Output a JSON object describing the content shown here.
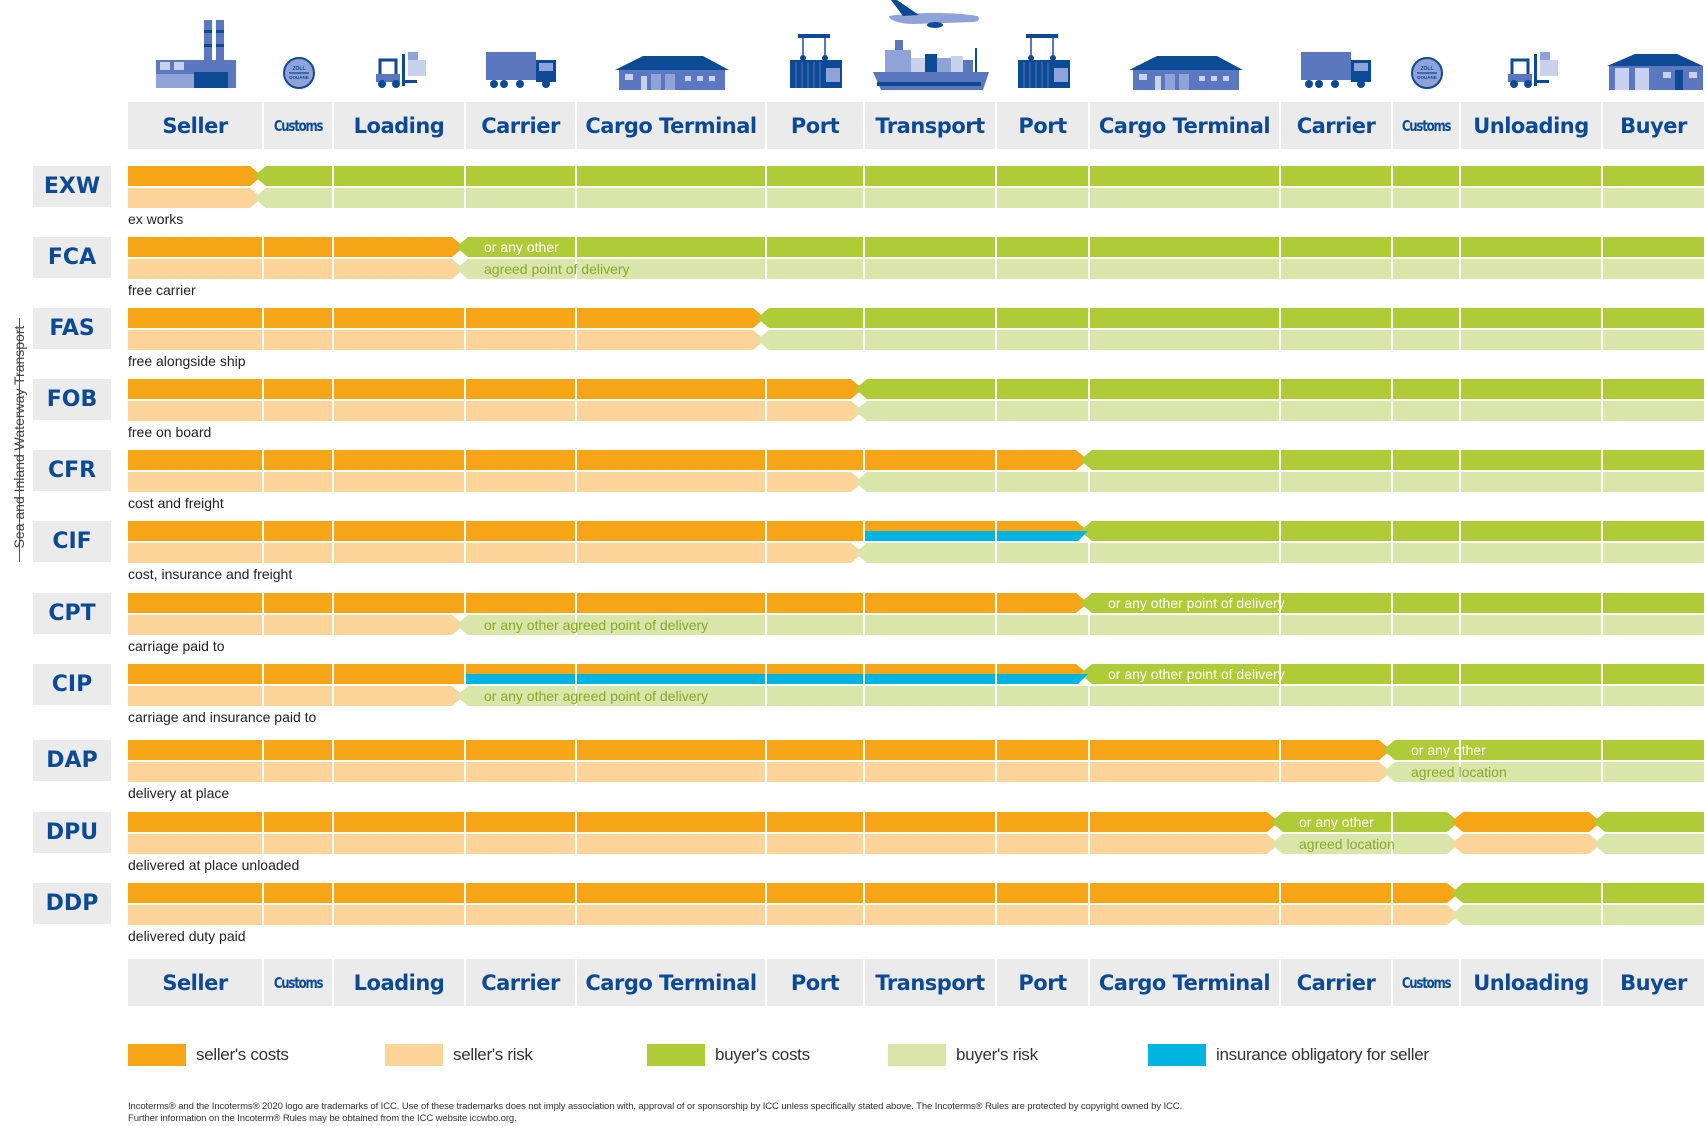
{
  "columns": [
    {
      "label": "Seller",
      "icon": "factory-icon",
      "narrow": false
    },
    {
      "label": "Customs",
      "icon": "customs-stamp-icon",
      "narrow": true
    },
    {
      "label": "Loading",
      "icon": "forklift-icon",
      "narrow": false
    },
    {
      "label": "Carrier",
      "icon": "truck-icon",
      "narrow": false
    },
    {
      "label": "Cargo Terminal",
      "icon": "warehouse-icon",
      "narrow": false
    },
    {
      "label": "Port",
      "icon": "port-crane-icon",
      "narrow": false
    },
    {
      "label": "Transport",
      "icon": "ship-and-plane-icon",
      "narrow": false
    },
    {
      "label": "Port",
      "icon": "port-crane-icon",
      "narrow": false
    },
    {
      "label": "Cargo Terminal",
      "icon": "warehouse-icon",
      "narrow": false
    },
    {
      "label": "Carrier",
      "icon": "truck-icon",
      "narrow": false
    },
    {
      "label": "Customs",
      "icon": "customs-stamp-icon",
      "narrow": true
    },
    {
      "label": "Unloading",
      "icon": "forklift-icon",
      "narrow": false
    },
    {
      "label": "Buyer",
      "icon": "buyer-house-icon",
      "narrow": false
    }
  ],
  "stamp_text": {
    "top": "ZOLL",
    "bottom": "DOUANE"
  },
  "side_label": "Sea and Inland Waterway Transport",
  "colors": {
    "seller_costs": "#f5a516",
    "seller_risk": "#fdd49a",
    "buyer_costs": "#afcb37",
    "buyer_risk": "#d9e5a9",
    "insurance": "#00b4e2",
    "brand_blue": "#0d4a96"
  },
  "terms": [
    {
      "code": "EXW",
      "name": "ex works",
      "costs": [
        [
          "seller",
          0,
          1
        ],
        [
          "buyer",
          1,
          13
        ]
      ],
      "risk": [
        [
          "seller",
          0,
          1
        ],
        [
          "buyer",
          1,
          13
        ]
      ],
      "insurance": null,
      "costs_note": "",
      "risk_note": ""
    },
    {
      "code": "FCA",
      "name": "free carrier",
      "costs": [
        [
          "seller",
          0,
          3
        ],
        [
          "buyer",
          3,
          13
        ]
      ],
      "risk": [
        [
          "seller",
          0,
          3
        ],
        [
          "buyer",
          3,
          13
        ]
      ],
      "insurance": null,
      "costs_note": "or any other",
      "risk_note": "agreed point of delivery"
    },
    {
      "code": "FAS",
      "name": "free alongside ship",
      "costs": [
        [
          "seller",
          0,
          5
        ],
        [
          "buyer",
          5,
          13
        ]
      ],
      "risk": [
        [
          "seller",
          0,
          5
        ],
        [
          "buyer",
          5,
          13
        ]
      ],
      "insurance": null,
      "costs_note": "",
      "risk_note": ""
    },
    {
      "code": "FOB",
      "name": "free on board",
      "costs": [
        [
          "seller",
          0,
          6
        ],
        [
          "buyer",
          6,
          13
        ]
      ],
      "risk": [
        [
          "seller",
          0,
          6
        ],
        [
          "buyer",
          6,
          13
        ]
      ],
      "insurance": null,
      "costs_note": "",
      "risk_note": ""
    },
    {
      "code": "CFR",
      "name": "cost and freight",
      "costs": [
        [
          "seller",
          0,
          8
        ],
        [
          "buyer",
          8,
          13
        ]
      ],
      "risk": [
        [
          "seller",
          0,
          6
        ],
        [
          "buyer",
          6,
          13
        ]
      ],
      "insurance": null,
      "costs_note": "",
      "risk_note": ""
    },
    {
      "code": "CIF",
      "name": "cost, insurance and freight",
      "costs": [
        [
          "seller",
          0,
          8
        ],
        [
          "buyer",
          8,
          13
        ]
      ],
      "risk": [
        [
          "seller",
          0,
          6
        ],
        [
          "buyer",
          6,
          13
        ]
      ],
      "insurance": [
        6,
        8
      ],
      "costs_note": "",
      "risk_note": ""
    },
    {
      "code": "CPT",
      "name": "carriage paid to",
      "costs": [
        [
          "seller",
          0,
          8
        ],
        [
          "buyer",
          8,
          13
        ]
      ],
      "risk": [
        [
          "seller",
          0,
          3
        ],
        [
          "buyer",
          3,
          13
        ]
      ],
      "insurance": null,
      "costs_note": "or any other point of delivery",
      "risk_note": "or any other agreed point of delivery"
    },
    {
      "code": "CIP",
      "name": "carriage and insurance paid to",
      "costs": [
        [
          "seller",
          0,
          8
        ],
        [
          "buyer",
          8,
          13
        ]
      ],
      "risk": [
        [
          "seller",
          0,
          3
        ],
        [
          "buyer",
          3,
          13
        ]
      ],
      "insurance": [
        3,
        8
      ],
      "costs_note": "or any other point of delivery",
      "risk_note": "or any other agreed point of delivery"
    },
    {
      "code": "DAP",
      "name": "delivery at place",
      "costs": [
        [
          "seller",
          0,
          10
        ],
        [
          "buyer",
          10,
          13
        ]
      ],
      "risk": [
        [
          "seller",
          0,
          10
        ],
        [
          "buyer",
          10,
          13
        ]
      ],
      "insurance": null,
      "costs_note": "or any other",
      "risk_note": "agreed location"
    },
    {
      "code": "DPU",
      "name": "delivered at place unloaded",
      "costs": [
        [
          "seller",
          0,
          9
        ],
        [
          "buyer",
          9,
          11
        ],
        [
          "seller",
          11,
          12
        ],
        [
          "buyer",
          12,
          13
        ]
      ],
      "risk": [
        [
          "seller",
          0,
          9
        ],
        [
          "buyer",
          9,
          11
        ],
        [
          "seller",
          11,
          12
        ],
        [
          "buyer",
          12,
          13
        ]
      ],
      "insurance": null,
      "costs_note": "or any other",
      "risk_note": "agreed location"
    },
    {
      "code": "DDP",
      "name": "delivered duty paid",
      "costs": [
        [
          "seller",
          0,
          11
        ],
        [
          "buyer",
          11,
          13
        ]
      ],
      "risk": [
        [
          "seller",
          0,
          11
        ],
        [
          "buyer",
          11,
          13
        ]
      ],
      "insurance": null,
      "costs_note": "",
      "risk_note": ""
    }
  ],
  "legend": [
    {
      "key": "seller_costs",
      "label": "seller's costs"
    },
    {
      "key": "seller_risk",
      "label": "seller's risk"
    },
    {
      "key": "buyer_costs",
      "label": "buyer's costs"
    },
    {
      "key": "buyer_risk",
      "label": "buyer's risk"
    },
    {
      "key": "insurance",
      "label": "insurance obligatory for seller"
    }
  ],
  "footer": {
    "line1": "Incoterms® and the Incoterms® 2020 logo are trademarks of ICC. Use of these trademarks does not imply association with, approval of or sponsorship by ICC unless specifically stated above.  The Incoterms® Rules are protected by copyright owned by ICC.",
    "line2": "Further information on the Incoterm® Rules may be obtained from the ICC website iccwbo.org."
  }
}
